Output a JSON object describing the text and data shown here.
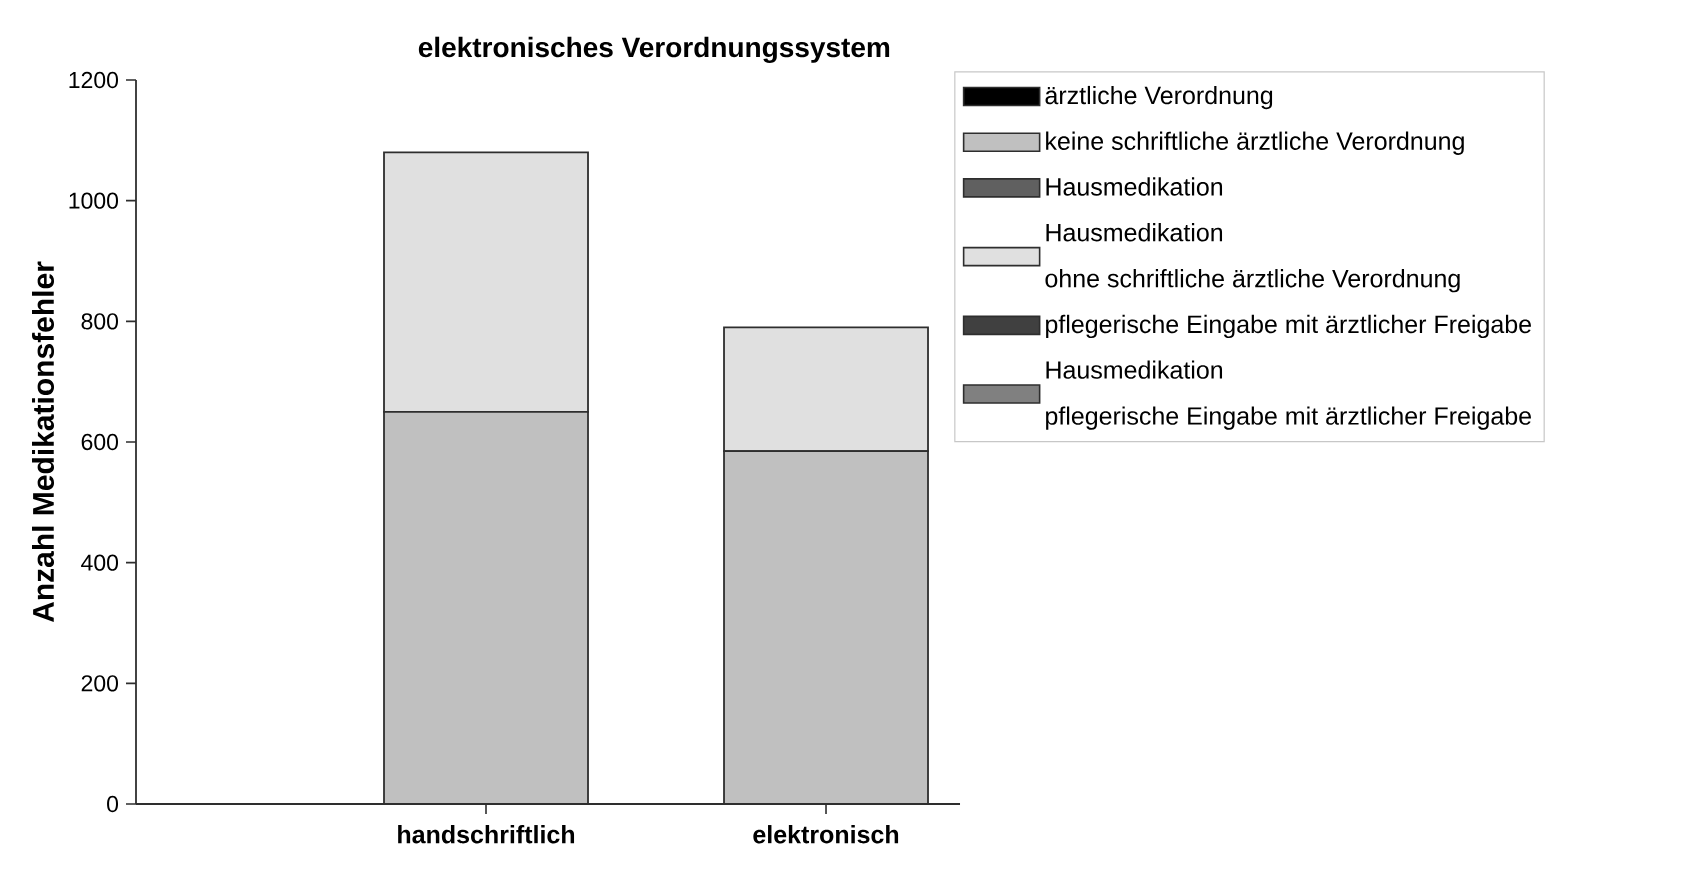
{
  "chart_data": {
    "type": "bar",
    "title": "elektronisches Verordnungssystem",
    "ylabel": "Anzahl Medikationsfehler",
    "categories": [
      "handschriftlich",
      "elektronisch"
    ],
    "stacked": true,
    "series": [
      {
        "name": "ärztliche Verordnung",
        "color": "#000000",
        "values": [
          0,
          0
        ]
      },
      {
        "name": "keine schriftliche ärztliche Verordnung",
        "color": "#c0c0c0",
        "values": [
          650,
          585
        ]
      },
      {
        "name": "Hausmedikation",
        "color": "#606060",
        "values": [
          0,
          0
        ]
      },
      {
        "name": "Hausmedikation\nohne schriftliche ärztliche Verordnung",
        "color": "#e0e0e0",
        "values": [
          430,
          205
        ]
      },
      {
        "name": "pflegerische Eingabe mit ärztlicher Freigabe",
        "color": "#404040",
        "values": [
          0,
          0
        ]
      },
      {
        "name": "Hausmedikation\npflegerische Eingabe mit ärztlicher Freigabe",
        "color": "#808080",
        "values": [
          0,
          0
        ]
      }
    ],
    "ylim": [
      0,
      1200
    ],
    "yticks": [
      0,
      200,
      400,
      600,
      800,
      1000,
      1200
    ],
    "legend": "top right"
  }
}
